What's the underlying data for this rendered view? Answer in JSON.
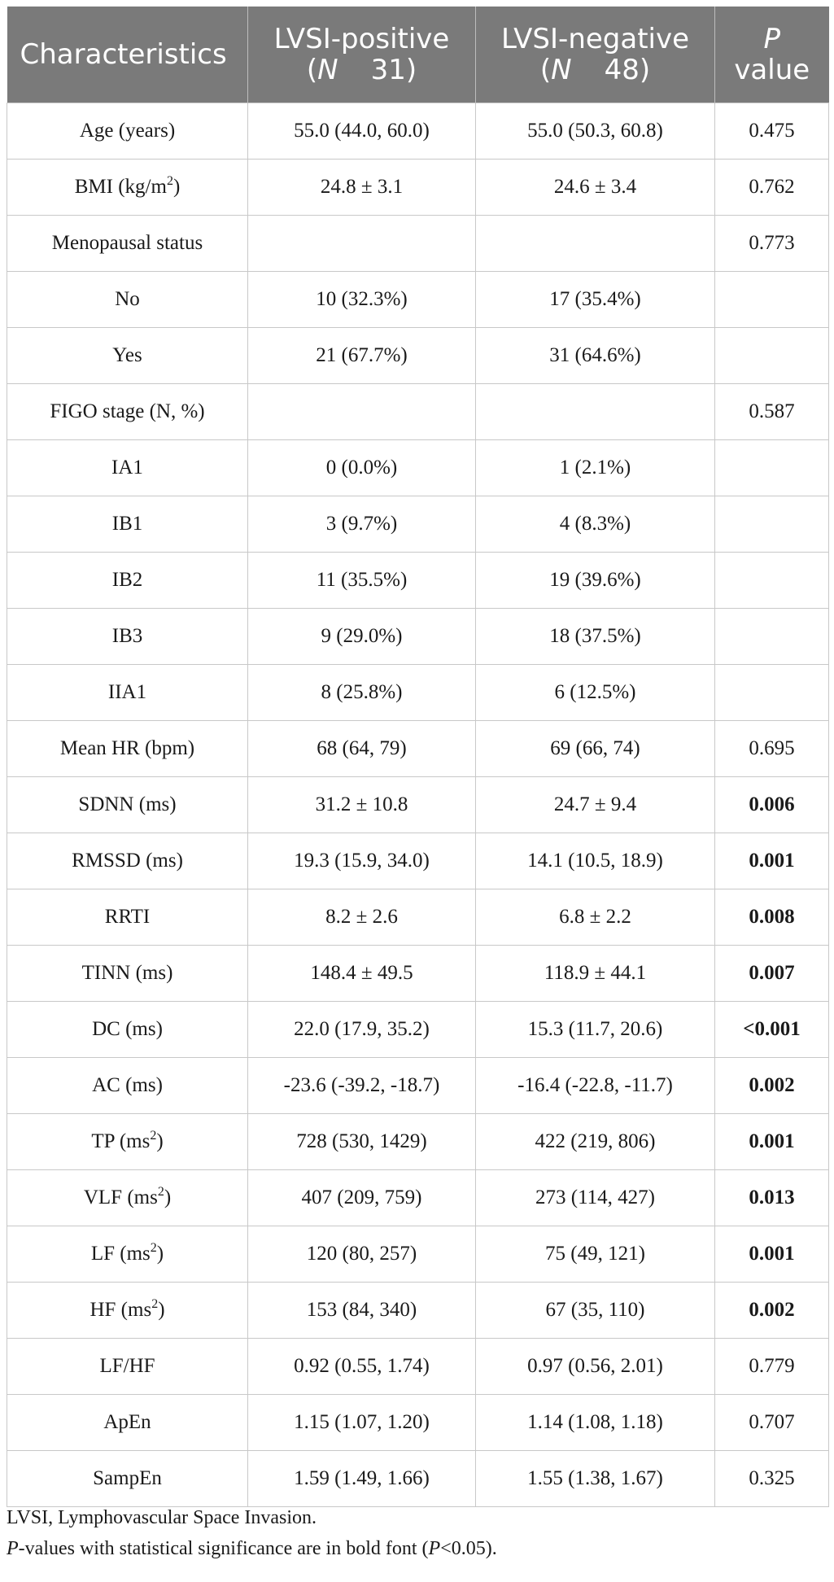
{
  "header": {
    "col1": "Characteristics",
    "col2_line1": "LVSI-positive",
    "col2_n_label": "N",
    "col2_n_value": "31)",
    "col3_line1": "LVSI-negative",
    "col3_n_label": "N",
    "col3_n_value": "48)",
    "col4_line1": "P",
    "col4_line2": "value"
  },
  "rows": [
    {
      "label": "Age (years)",
      "sup": "",
      "pos": "55.0 (44.0, 60.0)",
      "neg": "55.0 (50.3, 60.8)",
      "p": "0.475",
      "sig": false
    },
    {
      "label": "BMI (kg/m",
      "sup": "2",
      "label_suffix": ")",
      "pos": "24.8 ± 3.1",
      "neg": "24.6 ± 3.4",
      "p": "0.762",
      "sig": false
    },
    {
      "label": "Menopausal status",
      "sup": "",
      "pos": "",
      "neg": "",
      "p": "0.773",
      "sig": false
    },
    {
      "label": "No",
      "sup": "",
      "pos": "10 (32.3%)",
      "neg": "17 (35.4%)",
      "p": "",
      "sig": false
    },
    {
      "label": "Yes",
      "sup": "",
      "pos": "21 (67.7%)",
      "neg": "31 (64.6%)",
      "p": "",
      "sig": false
    },
    {
      "label": "FIGO stage (N, %)",
      "sup": "",
      "pos": "",
      "neg": "",
      "p": "0.587",
      "sig": false
    },
    {
      "label": "IA1",
      "sup": "",
      "pos": "0 (0.0%)",
      "neg": "1 (2.1%)",
      "p": "",
      "sig": false
    },
    {
      "label": "IB1",
      "sup": "",
      "pos": "3 (9.7%)",
      "neg": "4 (8.3%)",
      "p": "",
      "sig": false
    },
    {
      "label": "IB2",
      "sup": "",
      "pos": "11 (35.5%)",
      "neg": "19 (39.6%)",
      "p": "",
      "sig": false
    },
    {
      "label": "IB3",
      "sup": "",
      "pos": "9 (29.0%)",
      "neg": "18 (37.5%)",
      "p": "",
      "sig": false
    },
    {
      "label": "IIA1",
      "sup": "",
      "pos": "8 (25.8%)",
      "neg": "6 (12.5%)",
      "p": "",
      "sig": false
    },
    {
      "label": "Mean HR (bpm)",
      "sup": "",
      "pos": "68 (64, 79)",
      "neg": "69 (66, 74)",
      "p": "0.695",
      "sig": false
    },
    {
      "label": "SDNN (ms)",
      "sup": "",
      "pos": "31.2 ± 10.8",
      "neg": "24.7 ± 9.4",
      "p": "0.006",
      "sig": true
    },
    {
      "label": "RMSSD (ms)",
      "sup": "",
      "pos": "19.3 (15.9, 34.0)",
      "neg": "14.1 (10.5, 18.9)",
      "p": "0.001",
      "sig": true
    },
    {
      "label": "RRTI",
      "sup": "",
      "pos": "8.2 ± 2.6",
      "neg": "6.8 ± 2.2",
      "p": "0.008",
      "sig": true
    },
    {
      "label": "TINN (ms)",
      "sup": "",
      "pos": "148.4 ± 49.5",
      "neg": "118.9 ± 44.1",
      "p": "0.007",
      "sig": true
    },
    {
      "label": "DC (ms)",
      "sup": "",
      "pos": "22.0 (17.9, 35.2)",
      "neg": "15.3 (11.7, 20.6)",
      "p": "<0.001",
      "sig": true
    },
    {
      "label": "AC (ms)",
      "sup": "",
      "pos": "-23.6 (-39.2, -18.7)",
      "neg": "-16.4 (-22.8, -11.7)",
      "p": "0.002",
      "sig": true
    },
    {
      "label": "TP (ms",
      "sup": "2",
      "label_suffix": ")",
      "pos": "728 (530, 1429)",
      "neg": "422 (219, 806)",
      "p": "0.001",
      "sig": true
    },
    {
      "label": "VLF (ms",
      "sup": "2",
      "label_suffix": ")",
      "pos": "407 (209, 759)",
      "neg": "273 (114, 427)",
      "p": "0.013",
      "sig": true
    },
    {
      "label": "LF (ms",
      "sup": "2",
      "label_suffix": ")",
      "pos": "120 (80, 257)",
      "neg": "75 (49, 121)",
      "p": "0.001",
      "sig": true
    },
    {
      "label": "HF (ms",
      "sup": "2",
      "label_suffix": ")",
      "pos": "153 (84, 340)",
      "neg": "67 (35, 110)",
      "p": "0.002",
      "sig": true
    },
    {
      "label": "LF/HF",
      "sup": "",
      "pos": "0.92 (0.55, 1.74)",
      "neg": "0.97 (0.56, 2.01)",
      "p": "0.779",
      "sig": false
    },
    {
      "label": "ApEn",
      "sup": "",
      "pos": "1.15 (1.07, 1.20)",
      "neg": "1.14 (1.08, 1.18)",
      "p": "0.707",
      "sig": false
    },
    {
      "label": "SampEn",
      "sup": "",
      "pos": "1.59 (1.49, 1.66)",
      "neg": "1.55 (1.38, 1.67)",
      "p": "0.325",
      "sig": false
    }
  ],
  "footnotes": {
    "line1": "LVSI, Lymphovascular Space Invasion.",
    "line2_italic": "P",
    "line2_text": "-values with statistical significance are in bold font (",
    "line2_italic2": "P",
    "line2_end": "<0.05)."
  }
}
